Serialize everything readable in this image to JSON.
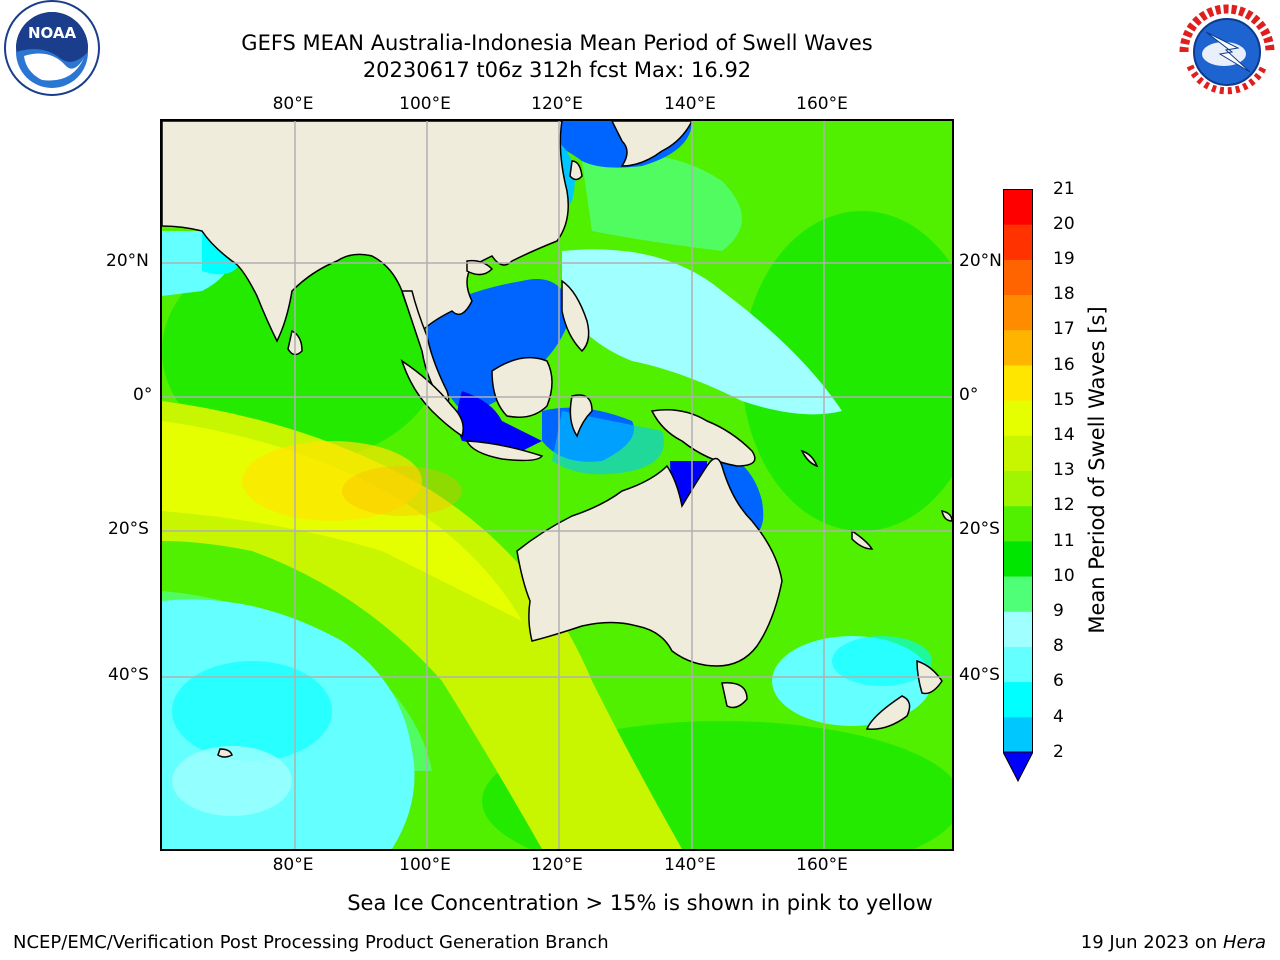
{
  "title": {
    "line1": "GEFS MEAN Australia-Indonesia Mean Period of Swell Waves",
    "line2": "20230617 t06z 312h fcst   Max: 16.92"
  },
  "logos": {
    "left": {
      "name": "NOAA",
      "ring_text": "NATIONAL OCEANIC AND ATMOSPHERIC ADMINISTRATION · U.S. DEPARTMENT OF COMMERCE"
    },
    "right": {
      "name": "NATIONAL WEATHER SERVICE"
    }
  },
  "map": {
    "lon_ticks": [
      "80°E",
      "100°E",
      "120°E",
      "140°E",
      "160°E"
    ],
    "lat_ticks": [
      "20°N",
      "0°",
      "20°S",
      "40°S"
    ],
    "land_color": "#efecdc",
    "grid_color": "#b0b0b0"
  },
  "colorbar": {
    "label": "Mean Period of Swell Waves [s]",
    "ticks": [
      "2",
      "4",
      "6",
      "8",
      "9",
      "10",
      "11",
      "12",
      "13",
      "14",
      "15",
      "16",
      "17",
      "18",
      "19",
      "20",
      "21"
    ],
    "colors": [
      "#0064ff",
      "#00c8ff",
      "#00ffff",
      "#64ffff",
      "#a0ffff",
      "#50ff78",
      "#00e600",
      "#50f000",
      "#a0f500",
      "#c8f500",
      "#e6ff00",
      "#ffe600",
      "#ffb400",
      "#ff8c00",
      "#ff6400",
      "#ff3200",
      "#ff0000"
    ],
    "under_color": "#0000ff"
  },
  "note": "Sea Ice Concentration > 15% is shown in pink to yellow",
  "footer": {
    "left": "NCEP/EMC/Verification Post Processing Product Generation Branch",
    "date": "19 Jun 2023 on ",
    "machine": "Hera"
  }
}
